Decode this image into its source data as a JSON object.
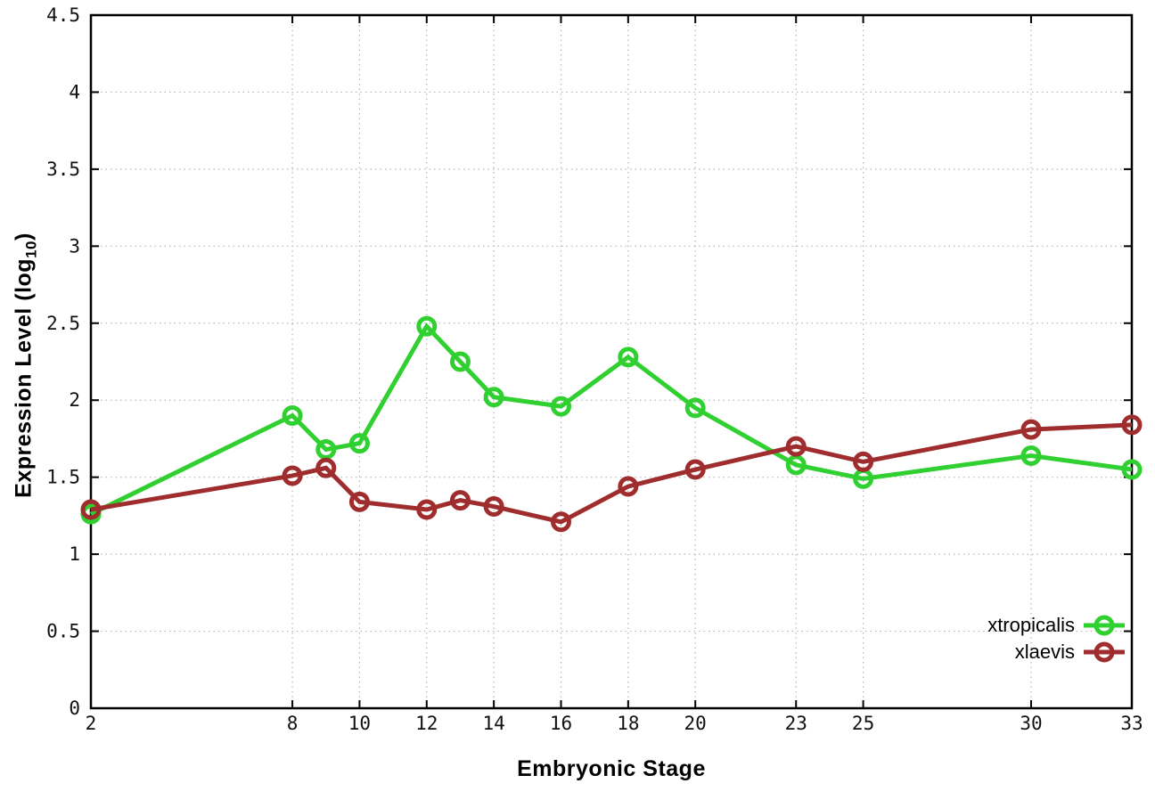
{
  "chart_data": {
    "type": "line",
    "title": "",
    "xlabel": "Embryonic Stage",
    "ylabel": "Expression Level (log10)",
    "ylabel_parts": {
      "main": "Expression Level (log",
      "sub": "10",
      "end": ")"
    },
    "x": [
      2,
      8,
      9,
      10,
      12,
      13,
      14,
      16,
      18,
      20,
      23,
      25,
      30,
      33
    ],
    "series": [
      {
        "name": "xtropicalis",
        "color": "#2fd02f",
        "values": [
          1.26,
          1.9,
          1.68,
          1.72,
          2.48,
          2.25,
          2.02,
          1.96,
          2.28,
          1.95,
          1.58,
          1.49,
          1.64,
          1.55
        ]
      },
      {
        "name": "xlaevis",
        "color": "#a02d2d",
        "values": [
          1.29,
          1.51,
          1.56,
          1.34,
          1.29,
          1.35,
          1.31,
          1.21,
          1.44,
          1.55,
          1.7,
          1.6,
          1.81,
          1.84
        ]
      }
    ],
    "xlim": [
      2,
      33
    ],
    "ylim": [
      0,
      4.5
    ],
    "xticks": [
      2,
      8,
      10,
      12,
      14,
      16,
      18,
      20,
      23,
      25,
      30,
      33
    ],
    "xtick_labels": [
      "2",
      "8",
      "10",
      "12",
      "14",
      "16",
      "18",
      "20",
      "23",
      "25",
      "30",
      "33"
    ],
    "yticks": [
      0,
      0.5,
      1,
      1.5,
      2,
      2.5,
      3,
      3.5,
      4,
      4.5
    ],
    "ytick_labels": [
      "0",
      "0.5",
      "1",
      "1.5",
      "2",
      "2.5",
      "3",
      "3.5",
      "4",
      "4.5"
    ],
    "grid": true,
    "marker": "open-circle",
    "legend_position": "inside-bottom-right",
    "colors": {
      "background": "#ffffff",
      "border": "#000000",
      "grid": "#b5b5b5",
      "tick_text": "#111111"
    }
  }
}
